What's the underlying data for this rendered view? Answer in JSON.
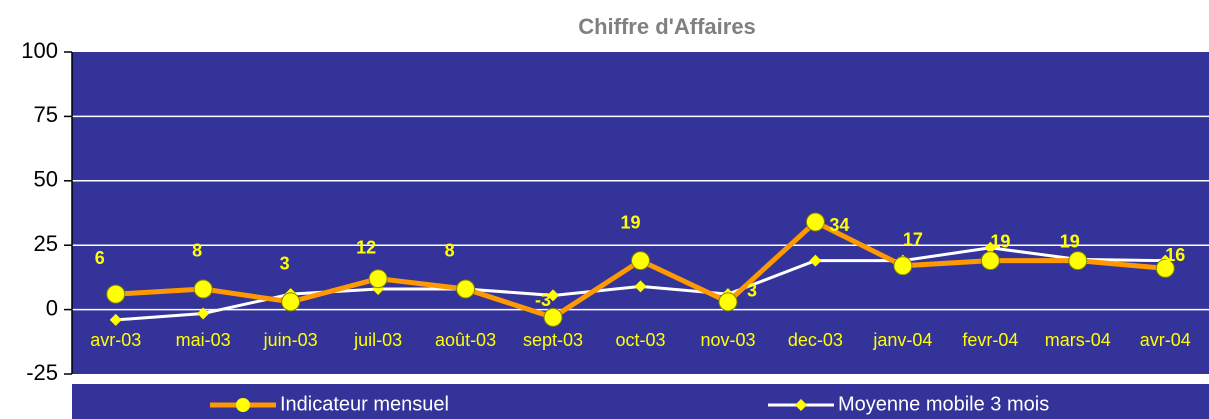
{
  "chart_data": {
    "type": "line",
    "title": "Chiffre d'Affaires",
    "categories": [
      "avr-03",
      "mai-03",
      "juin-03",
      "juil-03",
      "août-03",
      "sept-03",
      "oct-03",
      "nov-03",
      "dec-03",
      "janv-04",
      "fevr-04",
      "mars-04",
      "avr-04"
    ],
    "series": [
      {
        "name": "Indicateur mensuel",
        "color": "#ff9900",
        "values": [
          6,
          8,
          3,
          12,
          8,
          -3,
          19,
          3,
          34,
          17,
          19,
          19,
          16
        ]
      },
      {
        "name": "Moyenne mobile 3 mois",
        "color": "#ffffff",
        "values": [
          -4,
          -1.5,
          6,
          8,
          8,
          5.5,
          9,
          6,
          19,
          19,
          24,
          19.5,
          19
        ]
      }
    ],
    "ylim": [
      -25,
      100
    ],
    "yticks": [
      -25,
      0,
      25,
      50,
      75,
      100
    ],
    "grid": true,
    "legend": "bottom"
  }
}
